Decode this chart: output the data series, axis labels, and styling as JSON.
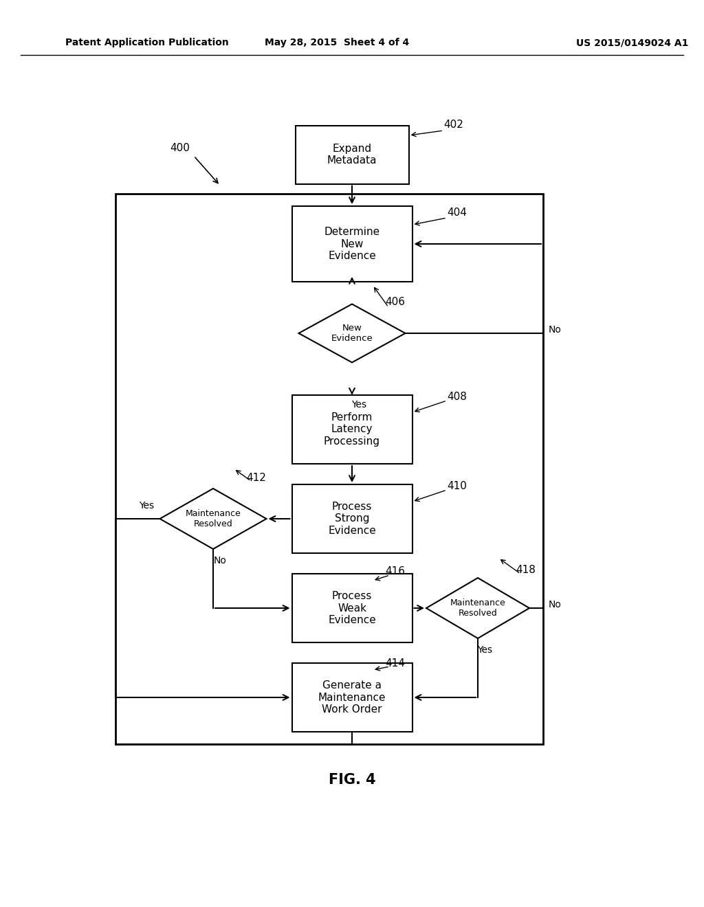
{
  "bg_color": "#ffffff",
  "header_left": "Patent Application Publication",
  "header_center": "May 28, 2015  Sheet 4 of 4",
  "header_right": "US 2015/0149024 A1",
  "fig_label": "FIG. 4",
  "label_400": "400",
  "label_402": "402",
  "label_404": "404",
  "label_406": "406",
  "label_408": "408",
  "label_410": "410",
  "label_412": "412",
  "label_414": "414",
  "label_416": "416",
  "label_418": "418",
  "box_402_text": "Expand\nMetadata",
  "box_404_text": "Determine\nNew\nEvidence",
  "diamond_406_text": "New\nEvidence",
  "box_408_text": "Perform\nLatency\nProcessing",
  "box_410_text": "Process\nStrong\nEvidence",
  "diamond_412_text": "Maintenance\nResolved",
  "box_416_text": "Process\nWeak\nEvidence",
  "diamond_418_text": "Maintenance\nResolved",
  "box_414_text": "Generate a\nMaintenance\nWork Order",
  "yes_406": "Yes",
  "no_406": "No",
  "yes_412": "Yes",
  "no_412": "No",
  "yes_418": "Yes",
  "no_418": "No"
}
